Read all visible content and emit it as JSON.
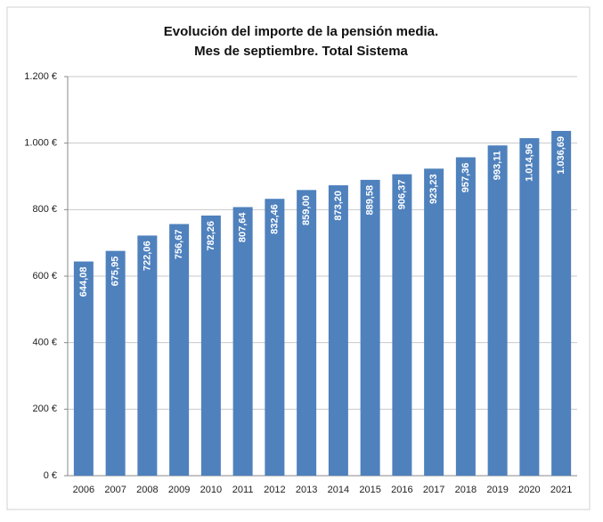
{
  "chart_data": {
    "type": "bar",
    "title": [
      "Evolución del importe de la pensión media.",
      "Mes de septiembre. Total Sistema"
    ],
    "categories": [
      "2006",
      "2007",
      "2008",
      "2009",
      "2010",
      "2011",
      "2012",
      "2013",
      "2014",
      "2015",
      "2016",
      "2017",
      "2018",
      "2019",
      "2020",
      "2021"
    ],
    "values": [
      644.08,
      675.95,
      722.06,
      756.67,
      782.26,
      807.64,
      832.46,
      859.0,
      873.2,
      889.58,
      906.37,
      923.23,
      957.36,
      993.11,
      1014.96,
      1036.69
    ],
    "value_labels": [
      "644,08",
      "675,95",
      "722,06",
      "756,67",
      "782,26",
      "807,64",
      "832,46",
      "859,00",
      "873,20",
      "889,58",
      "906,37",
      "923,23",
      "957,36",
      "993,11",
      "1.014,96",
      "1.036,69"
    ],
    "color": "#4f81bd",
    "ylim": [
      0,
      1200
    ],
    "yticks": [
      {
        "value": 0,
        "label": "0 €"
      },
      {
        "value": 200,
        "label": "200 €"
      },
      {
        "value": 400,
        "label": "400 €"
      },
      {
        "value": 600,
        "label": "600 €"
      },
      {
        "value": 800,
        "label": "800 €"
      },
      {
        "value": 1000,
        "label": "1.000 €"
      },
      {
        "value": 1200,
        "label": "1.200 €"
      }
    ],
    "grid": true
  }
}
